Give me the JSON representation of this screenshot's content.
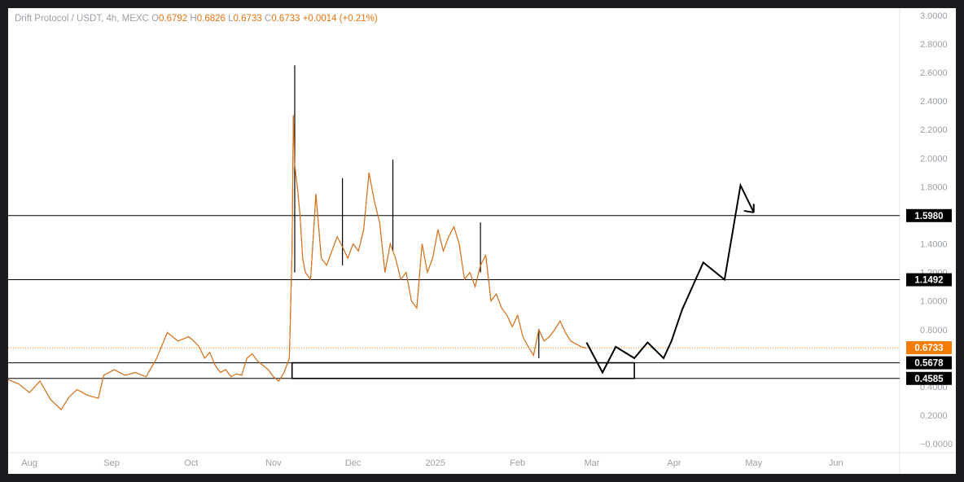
{
  "legend": {
    "symbol": "Drift Protocol / USDT, 4h, MEXC",
    "open_label": "O",
    "open": "0.6792",
    "high_label": "H",
    "high": "0.6826",
    "low_label": "L",
    "low": "0.6733",
    "close_label": "C",
    "close": "0.6733",
    "change": "+0.0014 (+0.21%)"
  },
  "colors": {
    "price_line": "#e8730c",
    "price_badge": "#f57c00",
    "level_badge": "#000000",
    "axis_text": "#9aa0a6"
  },
  "chart_data": {
    "type": "line",
    "title": "Drift Protocol / USDT, 4h, MEXC",
    "x_ticks": [
      "Aug",
      "Sep",
      "Oct",
      "Nov",
      "Dec",
      "2025",
      "Feb",
      "Mar",
      "Apr",
      "May",
      "Jun"
    ],
    "y_ticks": [
      "3.0000",
      "2.8000",
      "2.6000",
      "2.4000",
      "2.2000",
      "2.0000",
      "1.8000",
      "1.4000",
      "1.2000",
      "1.0000",
      "0.8000",
      "0.4000",
      "0.2000",
      "−0.0000"
    ],
    "ylim": [
      -0.05,
      3.05
    ],
    "x_range_days": [
      -8,
      328
    ],
    "current_price": {
      "value": 0.6733,
      "label": "0.6733"
    },
    "levels": [
      {
        "value": 1.598,
        "label": "1.5980"
      },
      {
        "value": 1.1492,
        "label": "1.1492"
      },
      {
        "value": 0.5678,
        "label": "0.5678"
      },
      {
        "value": 0.4585,
        "label": "0.4585"
      }
    ],
    "zone": {
      "from_day": 99,
      "to_day": 228,
      "low": 0.4585,
      "high": 0.5678
    },
    "series": [
      {
        "x": [
          -8,
          -4,
          0,
          4,
          8,
          12,
          15,
          18,
          22,
          26,
          28,
          32,
          36,
          40,
          44,
          48,
          52,
          56,
          60,
          62,
          64,
          66,
          68,
          70,
          72,
          74,
          76,
          78,
          80,
          82,
          84,
          86,
          88,
          90,
          92,
          94,
          96,
          98,
          99,
          99.5,
          100,
          101,
          102,
          103,
          104,
          106,
          108,
          110,
          112,
          114,
          116,
          118,
          120,
          122,
          124,
          126,
          128,
          130,
          132,
          134,
          136,
          138,
          140,
          142,
          144,
          146,
          148,
          150,
          152,
          154,
          156,
          158,
          160,
          162,
          164,
          166,
          168,
          170,
          172,
          174,
          176,
          178,
          180,
          182,
          184,
          186,
          188,
          190,
          192,
          194,
          196,
          198,
          200,
          202,
          204,
          206,
          208,
          210
        ],
        "values": [
          0.45,
          0.42,
          0.36,
          0.44,
          0.31,
          0.24,
          0.33,
          0.38,
          0.34,
          0.32,
          0.48,
          0.52,
          0.48,
          0.5,
          0.47,
          0.6,
          0.78,
          0.72,
          0.75,
          0.72,
          0.68,
          0.6,
          0.64,
          0.55,
          0.5,
          0.52,
          0.47,
          0.49,
          0.48,
          0.6,
          0.63,
          0.58,
          0.55,
          0.52,
          0.47,
          0.44,
          0.5,
          0.6,
          1.35,
          2.3,
          1.95,
          1.8,
          1.6,
          1.3,
          1.2,
          1.15,
          1.75,
          1.3,
          1.25,
          1.35,
          1.45,
          1.38,
          1.3,
          1.4,
          1.35,
          1.5,
          1.9,
          1.7,
          1.55,
          1.2,
          1.4,
          1.3,
          1.15,
          1.2,
          1.0,
          0.95,
          1.4,
          1.2,
          1.3,
          1.5,
          1.35,
          1.45,
          1.52,
          1.4,
          1.15,
          1.2,
          1.1,
          1.25,
          1.32,
          1.0,
          1.05,
          0.95,
          0.9,
          0.82,
          0.9,
          0.75,
          0.68,
          0.62,
          0.8,
          0.72,
          0.75,
          0.8,
          0.86,
          0.78,
          0.72,
          0.7,
          0.68,
          0.67
        ]
      }
    ],
    "projection": {
      "x": [
        210,
        216,
        221,
        228,
        233,
        239,
        242,
        246,
        254,
        262,
        268,
        273
      ],
      "values": [
        0.71,
        0.5,
        0.68,
        0.6,
        0.71,
        0.6,
        0.72,
        0.94,
        1.27,
        1.15,
        1.81,
        1.62
      ]
    },
    "projection_arrow_tip": {
      "x": 273,
      "value": 1.68
    },
    "spikes": [
      {
        "x": 100,
        "high": 2.65,
        "low": 1.2
      },
      {
        "x": 118,
        "high": 1.86,
        "low": 1.25
      },
      {
        "x": 137,
        "high": 1.99,
        "low": 1.35
      },
      {
        "x": 170,
        "high": 1.55,
        "low": 1.2
      },
      {
        "x": 192,
        "high": 0.8,
        "low": 0.6
      }
    ]
  }
}
